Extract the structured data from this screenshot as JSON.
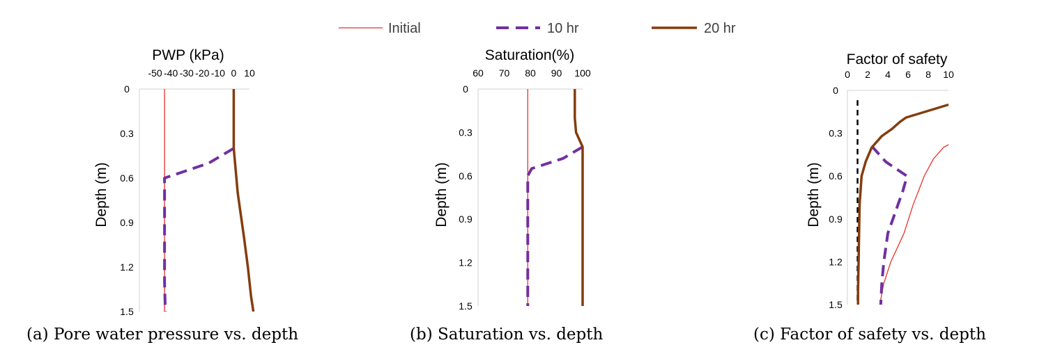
{
  "legend": [
    {
      "label": "Initial",
      "color": "#e8312a",
      "dash": "solid",
      "width": 1.3
    },
    {
      "label": "10 hr",
      "color": "#7030a0",
      "dash": "dashed",
      "width": 4
    },
    {
      "label": "20 hr",
      "color": "#843c0c",
      "dash": "solid",
      "width": 3.5
    }
  ],
  "captions": [
    "(a) Pore water pressure vs. depth",
    "(b) Saturation vs. depth",
    "(c) Factor of safety vs. depth"
  ],
  "chart_data": [
    {
      "type": "line",
      "title": "PWP (kPa)",
      "xlabel": "PWP (kPa)",
      "ylabel": "Depth (m)",
      "xlim": [
        -60,
        10
      ],
      "ylim": [
        0,
        1.5
      ],
      "y_inverted": true,
      "x_ticks": [
        "-50",
        "-40",
        "-30",
        "-20",
        "-10",
        "0",
        "10"
      ],
      "y_ticks": [
        "0",
        "0.3",
        "0.6",
        "0.9",
        "1.2",
        "1.5"
      ],
      "series": [
        {
          "name": "Initial",
          "points": [
            [
              -44,
              0
            ],
            [
              -44,
              1.5
            ]
          ]
        },
        {
          "name": "10 hr",
          "points": [
            [
              0,
              0.4
            ],
            [
              -16,
              0.5
            ],
            [
              -44,
              0.6
            ],
            [
              -44,
              0.7
            ],
            [
              -44,
              1.0
            ],
            [
              -44,
              1.3
            ],
            [
              -43.5,
              1.5
            ]
          ]
        },
        {
          "name": "20 hr",
          "points": [
            [
              0,
              0
            ],
            [
              0,
              0.1
            ],
            [
              0,
              0.2
            ],
            [
              0,
              0.3
            ],
            [
              0,
              0.4
            ],
            [
              2.5,
              0.7
            ],
            [
              6.5,
              1.0
            ],
            [
              9,
              1.2
            ],
            [
              11,
              1.4
            ],
            [
              12.5,
              1.5
            ]
          ]
        }
      ]
    },
    {
      "type": "line",
      "title": "Saturation(%)",
      "xlabel": "Saturation(%)",
      "ylabel": "Depth (m)",
      "xlim": [
        60,
        100
      ],
      "ylim": [
        0,
        1.5
      ],
      "y_inverted": true,
      "x_ticks": [
        "60",
        "70",
        "80",
        "90",
        "100"
      ],
      "y_ticks": [
        "0",
        "0.3",
        "0.6",
        "0.9",
        "1.2",
        "1.5"
      ],
      "series": [
        {
          "name": "Initial",
          "points": [
            [
              79,
              0
            ],
            [
              79,
              1.5
            ]
          ]
        },
        {
          "name": "10 hr",
          "points": [
            [
              100,
              0.4
            ],
            [
              92.5,
              0.48
            ],
            [
              80.5,
              0.55
            ],
            [
              79,
              0.6
            ],
            [
              79,
              1.0
            ],
            [
              79,
              1.5
            ]
          ]
        },
        {
          "name": "20 hr",
          "points": [
            [
              97,
              0
            ],
            [
              97,
              0.1
            ],
            [
              97,
              0.2
            ],
            [
              97.5,
              0.3
            ],
            [
              100,
              0.4
            ],
            [
              100,
              1.5
            ]
          ]
        }
      ]
    },
    {
      "type": "line",
      "title": "Factor of safety",
      "xlabel": "Factor of safety",
      "ylabel": "Depth (m)",
      "xlim": [
        0,
        10
      ],
      "ylim": [
        0,
        1.5
      ],
      "y_inverted": true,
      "x_ticks": [
        "0",
        "2",
        "4",
        "6",
        "8",
        "10"
      ],
      "y_ticks": [
        "0",
        "0.3",
        "0.6",
        "0.9",
        "1.2",
        "1.5"
      ],
      "reference_line": {
        "x": 1.0,
        "style": "dashed",
        "color": "#000000"
      },
      "series": [
        {
          "name": "Initial",
          "points": [
            [
              10,
              0.38
            ],
            [
              9.5,
              0.4
            ],
            [
              8.5,
              0.48
            ],
            [
              7.6,
              0.6
            ],
            [
              6.5,
              0.8
            ],
            [
              5.6,
              1.0
            ],
            [
              4.3,
              1.2
            ],
            [
              3.6,
              1.35
            ],
            [
              3.2,
              1.5
            ]
          ]
        },
        {
          "name": "10 hr",
          "points": [
            [
              2.4,
              0.39
            ],
            [
              3.8,
              0.5
            ],
            [
              5.9,
              0.6
            ],
            [
              5.5,
              0.7
            ],
            [
              5.0,
              0.8
            ],
            [
              4.5,
              0.9
            ],
            [
              4.0,
              1.0
            ],
            [
              3.6,
              1.2
            ],
            [
              3.4,
              1.35
            ],
            [
              3.3,
              1.5
            ]
          ]
        },
        {
          "name": "20 hr",
          "points": [
            [
              10,
              0.1
            ],
            [
              5.8,
              0.19
            ],
            [
              5.2,
              0.22
            ],
            [
              4.4,
              0.27
            ],
            [
              3.4,
              0.32
            ],
            [
              2.4,
              0.4
            ],
            [
              1.8,
              0.5
            ],
            [
              1.4,
              0.6
            ],
            [
              1.2,
              0.8
            ],
            [
              1.15,
              1.0
            ],
            [
              1.1,
              1.2
            ],
            [
              1.05,
              1.4
            ],
            [
              1.05,
              1.5
            ]
          ]
        }
      ]
    }
  ]
}
